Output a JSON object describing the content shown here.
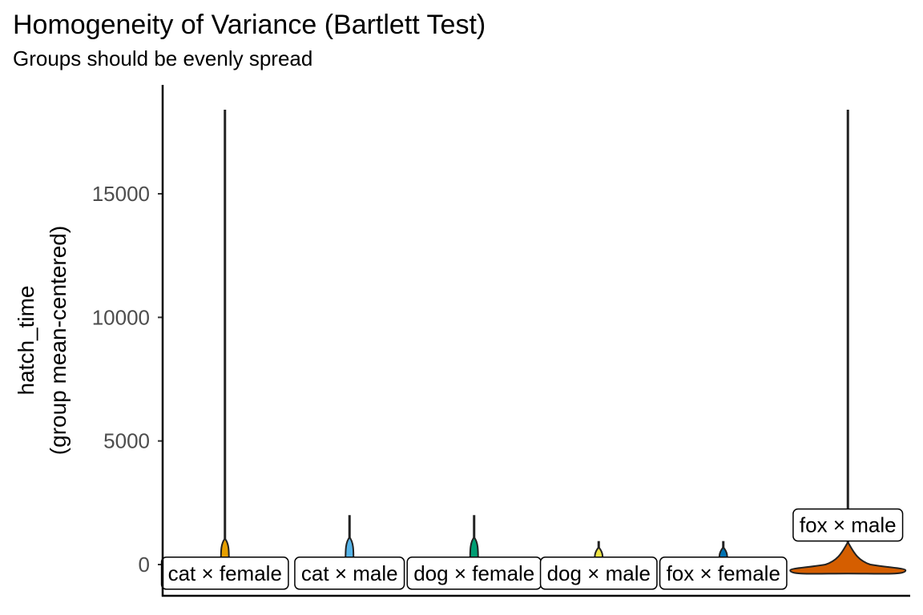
{
  "chart_data": {
    "type": "violin",
    "title": "Homogeneity of Variance (Bartlett Test)",
    "subtitle": "Groups should be evenly spread",
    "ylabel_line1": "hatch_time",
    "ylabel_line2": "(group mean-centered)",
    "xlabel": "",
    "ylim": [
      -1250,
      19400
    ],
    "yticks": [
      0,
      5000,
      10000,
      15000
    ],
    "grid": false,
    "legend": "none",
    "groups": [
      {
        "label": "cat × female",
        "color": "#E69F00",
        "min": -10,
        "max": 18400,
        "q_low": 50,
        "q_high": 1050,
        "label_y": -350
      },
      {
        "label": "cat × male",
        "color": "#56B4E9",
        "min": -10,
        "max": 2000,
        "q_low": 50,
        "q_high": 1100,
        "label_y": -350
      },
      {
        "label": "dog × female",
        "color": "#009E73",
        "min": -10,
        "max": 2000,
        "q_low": 50,
        "q_high": 1100,
        "label_y": -350
      },
      {
        "label": "dog × male",
        "color": "#F0E442",
        "min": -10,
        "max": 950,
        "q_low": 50,
        "q_high": 700,
        "label_y": -350
      },
      {
        "label": "fox × female",
        "color": "#0072B2",
        "min": -10,
        "max": 950,
        "q_low": 50,
        "q_high": 700,
        "label_y": -350
      },
      {
        "label": "fox × male",
        "color": "#D55E00",
        "min": -300,
        "max": 18400,
        "q_low": -300,
        "q_high": 900,
        "label_y": 1600
      }
    ]
  }
}
